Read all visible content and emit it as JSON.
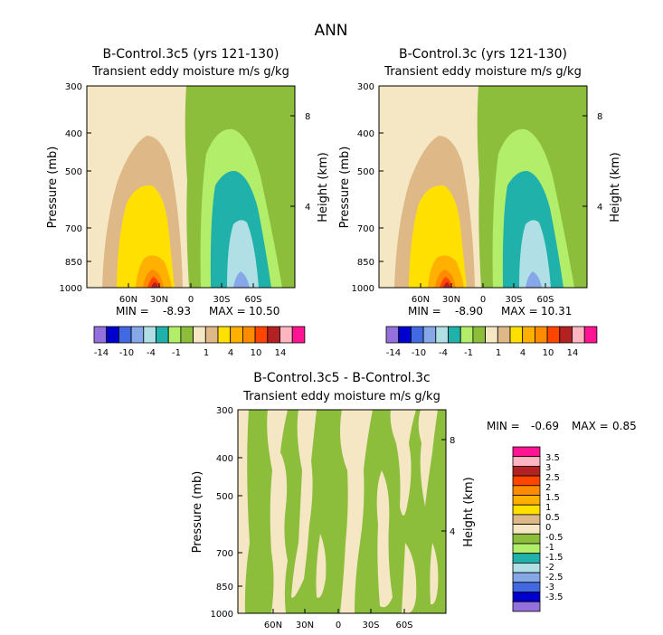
{
  "page_title": "ANN",
  "colors": {
    "c-14": "#9370DB",
    "c-12": "#0000CD",
    "c-10": "#4169E1",
    "c-8": "#87A8E8",
    "c-6": "#B0E0E6",
    "c-4": "#20B2AA",
    "c-2": "#B3EE6A",
    "c-1": "#8CBE3C",
    "c1": "#F5E6C4",
    "c2": "#DEB887",
    "c4": "#FFE000",
    "c6": "#FFB000",
    "c8": "#FF8C00",
    "c10": "#FF4500",
    "c12": "#B22222",
    "c14": "#FFB6C1",
    "c16": "#FF1493"
  },
  "chart_data": [
    {
      "type": "contour",
      "title": "B-Control.3c5 (yrs 121-130)",
      "subtitle": "Transient eddy moisture m/s g/kg",
      "ylabel": "Pressure (mb)",
      "ylabel_right": "Height (km)",
      "yticks": [
        "300",
        "400",
        "500",
        "700",
        "850",
        "1000"
      ],
      "yticks_right": [
        "8",
        "4"
      ],
      "xticks": [
        "60N",
        "30N",
        "0",
        "30S",
        "60S"
      ],
      "min_label": "MIN =",
      "min_value": "-8.93",
      "max_label": "MAX =",
      "max_value": "10.50",
      "colorbar_ticks": [
        "-14",
        "-10",
        "-4",
        "-1",
        "1",
        "4",
        "10",
        "14"
      ],
      "colorbar_colors": [
        "#9370DB",
        "#0000CD",
        "#4169E1",
        "#87A8E8",
        "#B0E0E6",
        "#20B2AA",
        "#B3EE6A",
        "#8CBE3C",
        "#F5E6C4",
        "#DEB887",
        "#FFE000",
        "#FFB000",
        "#FF8C00",
        "#FF4500",
        "#B22222",
        "#FFB6C1",
        "#FF1493"
      ]
    },
    {
      "type": "contour",
      "title": "B-Control.3c (yrs 121-130)",
      "subtitle": "Transient eddy moisture m/s g/kg",
      "ylabel": "Pressure (mb)",
      "ylabel_right": "Height (km)",
      "yticks": [
        "300",
        "400",
        "500",
        "700",
        "850",
        "1000"
      ],
      "yticks_right": [
        "8",
        "4"
      ],
      "xticks": [
        "60N",
        "30N",
        "0",
        "30S",
        "60S"
      ],
      "min_label": "MIN =",
      "min_value": "-8.90",
      "max_label": "MAX =",
      "max_value": "10.31",
      "colorbar_ticks": [
        "-14",
        "-10",
        "-4",
        "-1",
        "1",
        "4",
        "10",
        "14"
      ],
      "colorbar_colors": [
        "#9370DB",
        "#0000CD",
        "#4169E1",
        "#87A8E8",
        "#B0E0E6",
        "#20B2AA",
        "#B3EE6A",
        "#8CBE3C",
        "#F5E6C4",
        "#DEB887",
        "#FFE000",
        "#FFB000",
        "#FF8C00",
        "#FF4500",
        "#B22222",
        "#FFB6C1",
        "#FF1493"
      ]
    },
    {
      "type": "contour",
      "title": "B-Control.3c5 - B-Control.3c",
      "subtitle": "Transient eddy moisture m/s g/kg",
      "ylabel": "Pressure (mb)",
      "ylabel_right": "Height (km)",
      "yticks": [
        "300",
        "400",
        "500",
        "700",
        "850",
        "1000"
      ],
      "yticks_right": [
        "8",
        "4"
      ],
      "xticks": [
        "60N",
        "30N",
        "0",
        "30S",
        "60S"
      ],
      "min_label": "MIN =",
      "min_value": "-0.69",
      "max_label": "MAX =",
      "max_value": "0.85",
      "colorbar_ticks": [
        "3.5",
        "3",
        "2.5",
        "2",
        "1.5",
        "1",
        "0.5",
        "0",
        "-0.5",
        "-1",
        "-1.5",
        "-2",
        "-2.5",
        "-3",
        "-3.5"
      ],
      "colorbar_colors": [
        "#FF1493",
        "#FFB6C1",
        "#B22222",
        "#FF4500",
        "#FF8C00",
        "#FFB000",
        "#FFE000",
        "#DEB887",
        "#F5E6C4",
        "#8CBE3C",
        "#B3EE6A",
        "#20B2AA",
        "#B0E0E6",
        "#87A8E8",
        "#4169E1",
        "#0000CD",
        "#9370DB"
      ]
    }
  ]
}
